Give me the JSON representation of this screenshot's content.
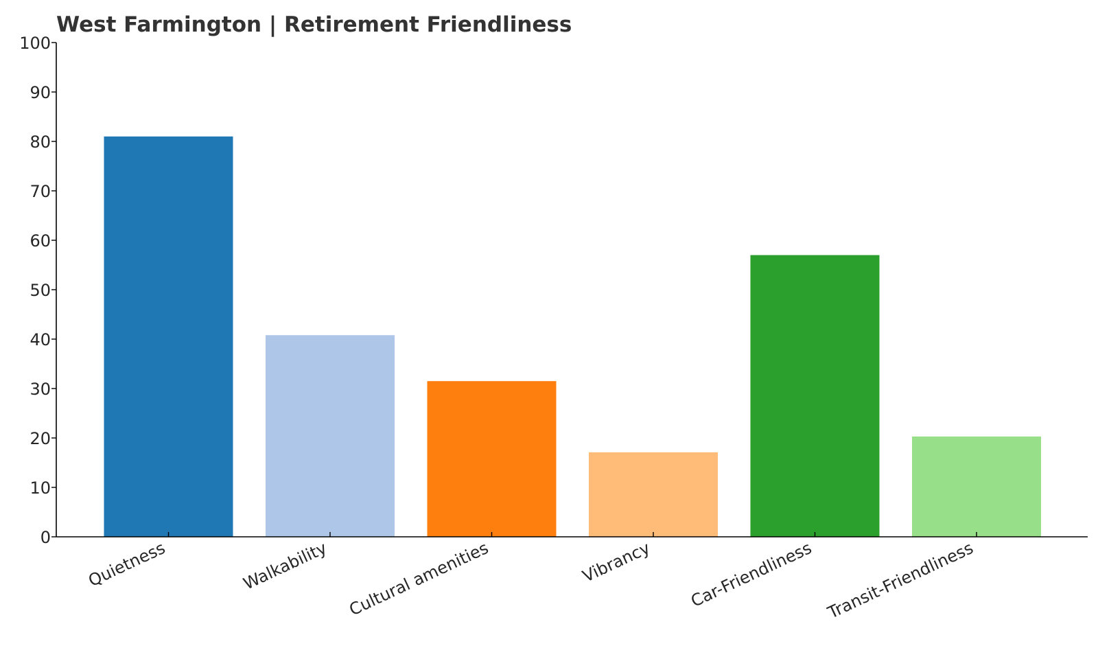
{
  "chart_data": {
    "type": "bar",
    "title": "West Farmington | Retirement Friendliness",
    "xlabel": "",
    "ylabel": "",
    "categories": [
      "Quietness",
      "Walkability",
      "Cultural amenities",
      "Vibrancy",
      "Car-Friendliness",
      "Transit-Friendliness"
    ],
    "values": [
      81,
      40.8,
      31.5,
      17.1,
      57,
      20.3
    ],
    "colors": [
      "#1f77b4",
      "#aec7e8",
      "#ff7f0e",
      "#ffbb78",
      "#2ca02c",
      "#98df8a"
    ],
    "ylim": [
      0,
      100
    ],
    "yticks": [
      0,
      10,
      20,
      30,
      40,
      50,
      60,
      70,
      80,
      90,
      100
    ],
    "grid": false,
    "legend": "none"
  }
}
